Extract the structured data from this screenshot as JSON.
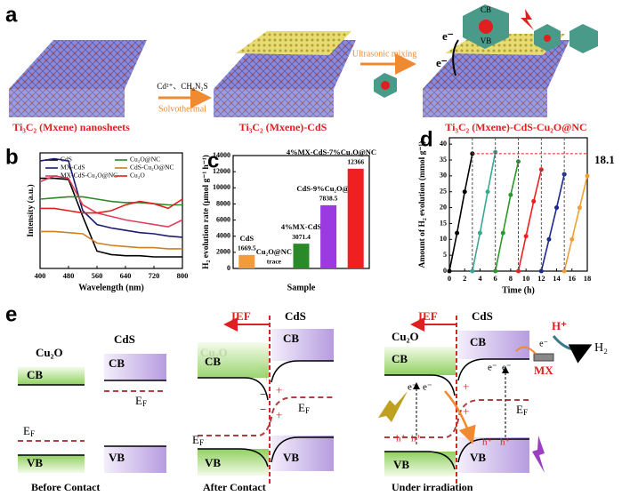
{
  "panel_a": {
    "label": "a",
    "titles": [
      "Ti₃C₂ (Mxene) nanosheets",
      "Ti₃C₂ (Mxene)-CdS",
      "Ti₃C₂ (Mxene)-CdS-Cu₂O@NC"
    ],
    "step1_top": "Cd²⁺、CH₄N₂S",
    "step1_bottom": "Solvothermal",
    "step2": "Ultrasonic mixing",
    "bands": [
      "CB",
      "VB"
    ],
    "electron": "e⁻"
  },
  "chart_data": [
    {
      "label": "b",
      "type": "line",
      "xlabel": "Wavelength (nm)",
      "ylabel": "Intensity (a.u.)",
      "x": [
        400,
        440,
        480,
        520,
        560,
        600,
        640,
        680,
        720,
        760,
        800
      ],
      "xlim": [
        400,
        800
      ],
      "xticks": [
        400,
        480,
        560,
        640,
        720,
        800
      ],
      "ylim": [
        0,
        1
      ],
      "legend": "top",
      "series": [
        {
          "name": "CdS",
          "color": "#000000",
          "values": [
            0.78,
            0.78,
            0.77,
            0.45,
            0.15,
            0.12,
            0.11,
            0.11,
            0.1,
            0.1,
            0.1
          ]
        },
        {
          "name": "MX-CdS",
          "color": "#1c1c70",
          "values": [
            0.93,
            0.95,
            0.93,
            0.5,
            0.38,
            0.35,
            0.33,
            0.31,
            0.3,
            0.28,
            0.27
          ]
        },
        {
          "name": "MX-CdS-Cu₂O@NC",
          "color": "#e0405a",
          "values": [
            0.75,
            0.8,
            0.78,
            0.55,
            0.48,
            0.45,
            0.42,
            0.4,
            0.38,
            0.36,
            0.42
          ]
        },
        {
          "name": "Cu₂O@NC",
          "color": "#2a8a2a",
          "values": [
            0.6,
            0.61,
            0.62,
            0.62,
            0.6,
            0.58,
            0.57,
            0.57,
            0.56,
            0.55,
            0.55
          ]
        },
        {
          "name": "CdS-Cu₂O@NC",
          "color": "#d08020",
          "values": [
            0.32,
            0.32,
            0.31,
            0.3,
            0.22,
            0.2,
            0.19,
            0.18,
            0.18,
            0.17,
            0.17
          ]
        },
        {
          "name": "Cu₂O",
          "color": "#e02020",
          "values": [
            0.52,
            0.52,
            0.5,
            0.48,
            0.48,
            0.5,
            0.55,
            0.58,
            0.56,
            0.52,
            0.6
          ]
        }
      ]
    },
    {
      "label": "c",
      "type": "bar",
      "xlabel": "Sample",
      "ylabel": "H₂ evolution rate (μmol g⁻¹ h⁻¹)",
      "categories": [
        "CdS",
        "Cu₂O@NC",
        "4%MX-CdS",
        "CdS-9%Cu₂O@NC",
        "4%MX-CdS-7%Cu₂O@NC"
      ],
      "values": [
        1669.5,
        0,
        3071.4,
        7838.5,
        12366
      ],
      "value_labels": [
        "1669.5",
        "trace",
        "3071.4",
        "7838.5",
        "12366"
      ],
      "colors": [
        "#f39a3a",
        "#9a9a9a",
        "#2a8a2a",
        "#9a3ae0",
        "#f02020"
      ],
      "ylim": [
        0,
        14000
      ],
      "yticks": [
        0,
        2000,
        4000,
        6000,
        8000,
        10000,
        12000,
        14000
      ]
    },
    {
      "label": "d",
      "type": "line",
      "xlabel": "Time (h)",
      "ylabel": "Amount of H₂ evolution (mmol g⁻¹)",
      "annotation": "18.1",
      "xlim": [
        0,
        18
      ],
      "xticks": [
        0,
        2,
        4,
        6,
        8,
        10,
        12,
        14,
        16,
        18
      ],
      "ylim": [
        0,
        42
      ],
      "yticks": [
        0,
        5,
        10,
        15,
        20,
        25,
        30,
        35,
        40
      ],
      "series": [
        {
          "color": "#000000",
          "x": [
            0,
            1,
            2,
            3
          ],
          "values": [
            0,
            12,
            25,
            37
          ]
        },
        {
          "color": "#3aa890",
          "x": [
            3,
            4,
            5,
            6
          ],
          "values": [
            0,
            12,
            25,
            37.5
          ]
        },
        {
          "color": "#2a9a2a",
          "x": [
            6,
            7,
            8,
            9
          ],
          "values": [
            0,
            12,
            24,
            34.5
          ]
        },
        {
          "color": "#f02020",
          "x": [
            9,
            10,
            11,
            12
          ],
          "values": [
            0,
            11,
            22,
            32
          ]
        },
        {
          "color": "#1c2a90",
          "x": [
            12,
            13,
            14,
            15
          ],
          "values": [
            0,
            10,
            20,
            30.5
          ]
        },
        {
          "color": "#f0a030",
          "x": [
            15,
            16,
            17,
            18
          ],
          "values": [
            0,
            10,
            20,
            30
          ]
        }
      ]
    }
  ],
  "panel_e": {
    "label": "e",
    "materials": [
      "Cu₂O",
      "CdS"
    ],
    "bands": [
      "CB",
      "VB"
    ],
    "fermi": "E",
    "fermi_sub": "F",
    "captions": [
      "Before Contact",
      "After Contact",
      "Under irradiation"
    ],
    "field": "IEF",
    "charges": [
      "+",
      "−"
    ],
    "carriers": [
      "e⁻",
      "h⁺"
    ],
    "cocatalyst": "MX",
    "proton": "H⁺",
    "product": "H₂"
  }
}
